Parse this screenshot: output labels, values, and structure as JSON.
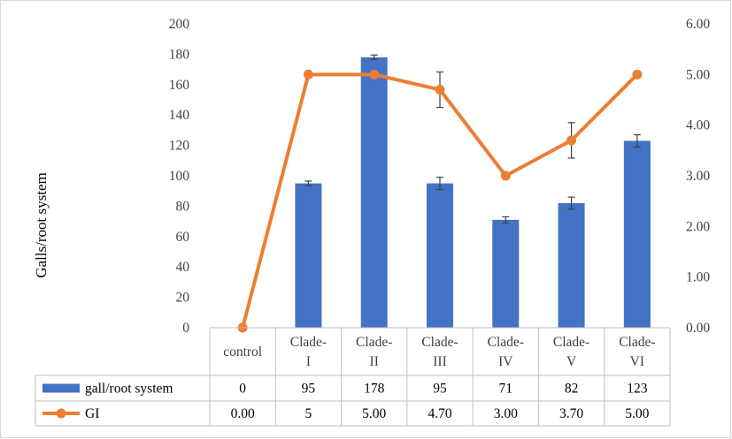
{
  "chart_data": {
    "type": "bar",
    "categories": [
      [
        "control"
      ],
      [
        "Clade-",
        "I"
      ],
      [
        "Clade-",
        "II"
      ],
      [
        "Clade-",
        "III"
      ],
      [
        "Clade-",
        "IV"
      ],
      [
        "Clade-",
        "V"
      ],
      [
        "Clade-",
        "VI"
      ]
    ],
    "ylabel": "Galls/root system",
    "ylim": [
      0,
      200
    ],
    "yticks": [
      "0",
      "20",
      "40",
      "60",
      "80",
      "100",
      "120",
      "140",
      "160",
      "180",
      "200"
    ],
    "y2lim": [
      0,
      6
    ],
    "y2ticks": [
      "0.00",
      "1.00",
      "2.00",
      "3.00",
      "4.00",
      "5.00",
      "6.00"
    ],
    "grid": false,
    "legend": "data-table-below",
    "series": [
      {
        "name": "gall/root system",
        "type": "bar",
        "axis": "left",
        "color": "#4472C4",
        "values": [
          0,
          95,
          178,
          95,
          71,
          82,
          123
        ],
        "errors": [
          0,
          1.5,
          1.5,
          4,
          2,
          4,
          4
        ],
        "table_values": [
          "0",
          "95",
          "178",
          "95",
          "71",
          "82",
          "123"
        ]
      },
      {
        "name": "GI",
        "type": "line",
        "axis": "right",
        "color": "#ED7D31",
        "values": [
          0,
          5,
          5,
          4.7,
          3,
          3.7,
          5
        ],
        "errors": [
          0,
          0,
          0,
          0.35,
          0,
          0.35,
          0
        ],
        "table_values": [
          "0.00",
          "5",
          "5.00",
          "4.70",
          "3.00",
          "3.70",
          "5.00"
        ]
      }
    ]
  }
}
